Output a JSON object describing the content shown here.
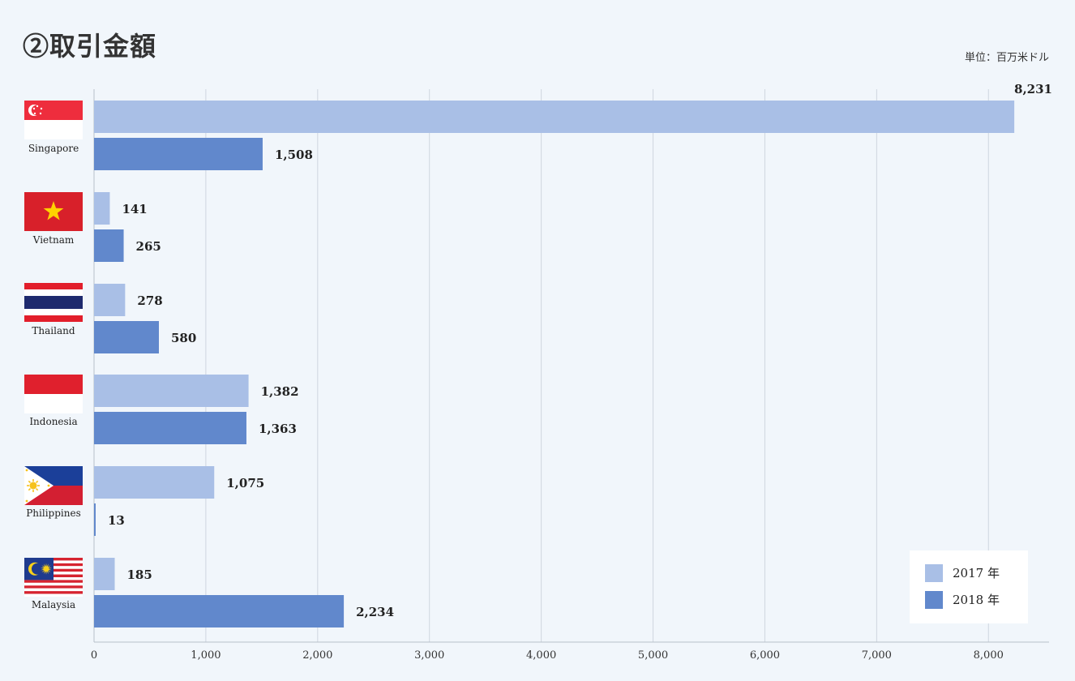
{
  "chart_data": {
    "type": "bar",
    "orientation": "horizontal",
    "title": "②取引金額",
    "unit_label": "単位：百万米ドル",
    "categories": [
      "Singapore",
      "Vietnam",
      "Thailand",
      "Indonesia",
      "Philippines",
      "Malaysia"
    ],
    "series": [
      {
        "name": "2017 年",
        "color": "#a9bfe6",
        "values": [
          8231,
          141,
          278,
          1382,
          1075,
          185
        ]
      },
      {
        "name": "2018 年",
        "color": "#6188cc",
        "values": [
          1508,
          265,
          580,
          1363,
          13,
          2234
        ]
      }
    ],
    "value_labels": {
      "2017 年": [
        "8,231",
        "141",
        "278",
        "1,382",
        "1,075",
        "185"
      ],
      "2018 年": [
        "1,508",
        "265",
        "580",
        "1,363",
        "13",
        "2,234"
      ]
    },
    "xlim": [
      0,
      8600
    ],
    "x_ticks": [
      0,
      1000,
      2000,
      3000,
      4000,
      5000,
      6000,
      7000,
      8000
    ],
    "x_tick_labels": [
      "0",
      "1,000",
      "2,000",
      "3,000",
      "4,000",
      "5,000",
      "6,000",
      "7,000",
      "8,000"
    ],
    "grid": "vertical",
    "legend_position": "bottom-right",
    "flag_icons": [
      "singapore-flag-icon",
      "vietnam-flag-icon",
      "thailand-flag-icon",
      "indonesia-flag-icon",
      "philippines-flag-icon",
      "malaysia-flag-icon"
    ]
  }
}
